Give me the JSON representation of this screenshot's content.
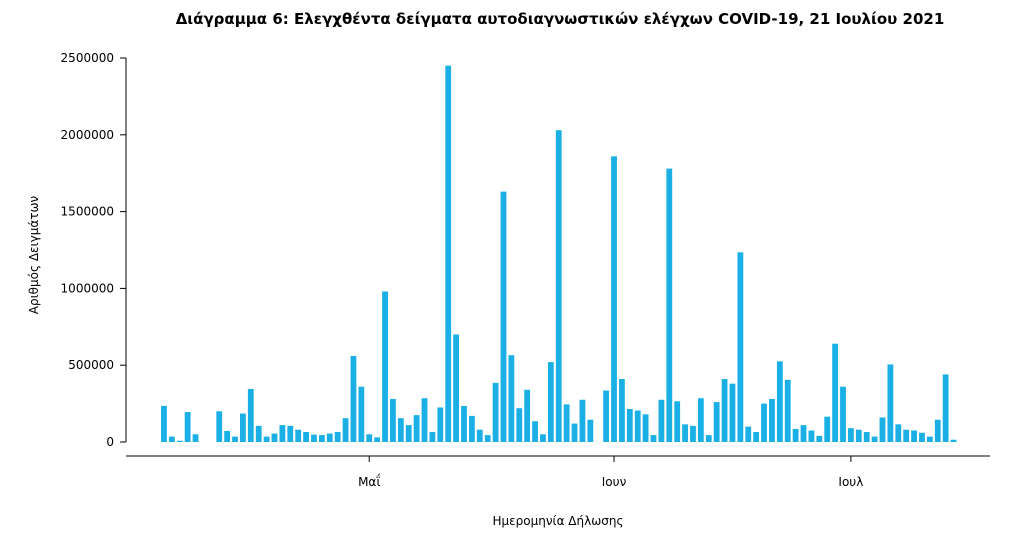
{
  "chart_data": {
    "type": "bar",
    "title": "Διάγραμμα 6: Ελεγχθέντα δείγματα αυτοδιαγνωστικών ελέγχων COVID-19, 21 Ιουλίου 2021",
    "xlabel": "Ημερομηνία Δήλωσης",
    "ylabel": "Αριθμός Δειγμάτων",
    "ylim": [
      0,
      2500000
    ],
    "yticks": [
      0,
      500000,
      1000000,
      1500000,
      2000000,
      2500000
    ],
    "ytick_labels": [
      "0",
      "500000",
      "1000000",
      "1500000",
      "2000000",
      "2500000"
    ],
    "xtick_labels": [
      "Μαΐ",
      "Ιουν",
      "Ιουλ"
    ],
    "xtick_dates": [
      "2021-05-01",
      "2021-06-01",
      "2021-07-01"
    ],
    "x_start_date": "2021-04-05",
    "color": "#1ab0e6",
    "grid": false,
    "values": [
      235000,
      35000,
      8000,
      195000,
      50000,
      0,
      0,
      200000,
      72000,
      35000,
      185000,
      345000,
      105000,
      35000,
      55000,
      110000,
      105000,
      80000,
      65000,
      48000,
      45000,
      55000,
      65000,
      155000,
      560000,
      360000,
      50000,
      30000,
      980000,
      280000,
      155000,
      110000,
      175000,
      285000,
      65000,
      225000,
      2450000,
      700000,
      235000,
      170000,
      80000,
      45000,
      385000,
      1630000,
      565000,
      220000,
      340000,
      135000,
      50000,
      520000,
      2030000,
      245000,
      120000,
      275000,
      145000,
      0,
      335000,
      1860000,
      410000,
      215000,
      205000,
      180000,
      45000,
      275000,
      1780000,
      265000,
      115000,
      105000,
      285000,
      45000,
      260000,
      410000,
      380000,
      1235000,
      100000,
      65000,
      250000,
      280000,
      525000,
      405000,
      85000,
      110000,
      75000,
      40000,
      165000,
      640000,
      360000,
      90000,
      80000,
      65000,
      35000,
      160000,
      505000,
      115000,
      80000,
      75000,
      60000,
      35000,
      145000,
      440000,
      15000
    ]
  }
}
